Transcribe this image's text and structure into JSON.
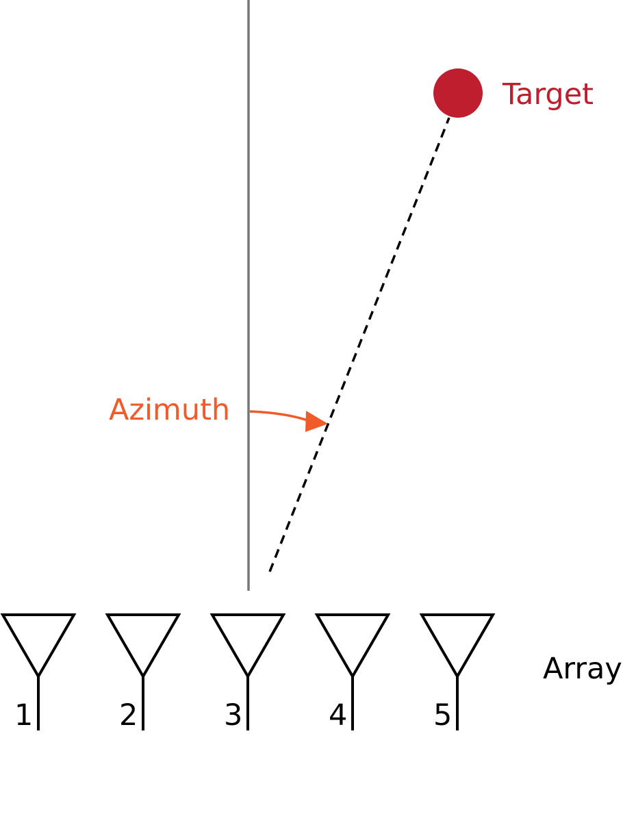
{
  "target": {
    "label": "Target",
    "color": "#BE1E2D"
  },
  "azimuth": {
    "label": "Azimuth",
    "color": "#F15A29"
  },
  "array": {
    "label": "Array",
    "elements": [
      "1",
      "2",
      "3",
      "4",
      "5"
    ]
  },
  "colors": {
    "boresight_line": "#777777",
    "antenna_stroke": "#000000",
    "line_of_sight": "#000000"
  }
}
